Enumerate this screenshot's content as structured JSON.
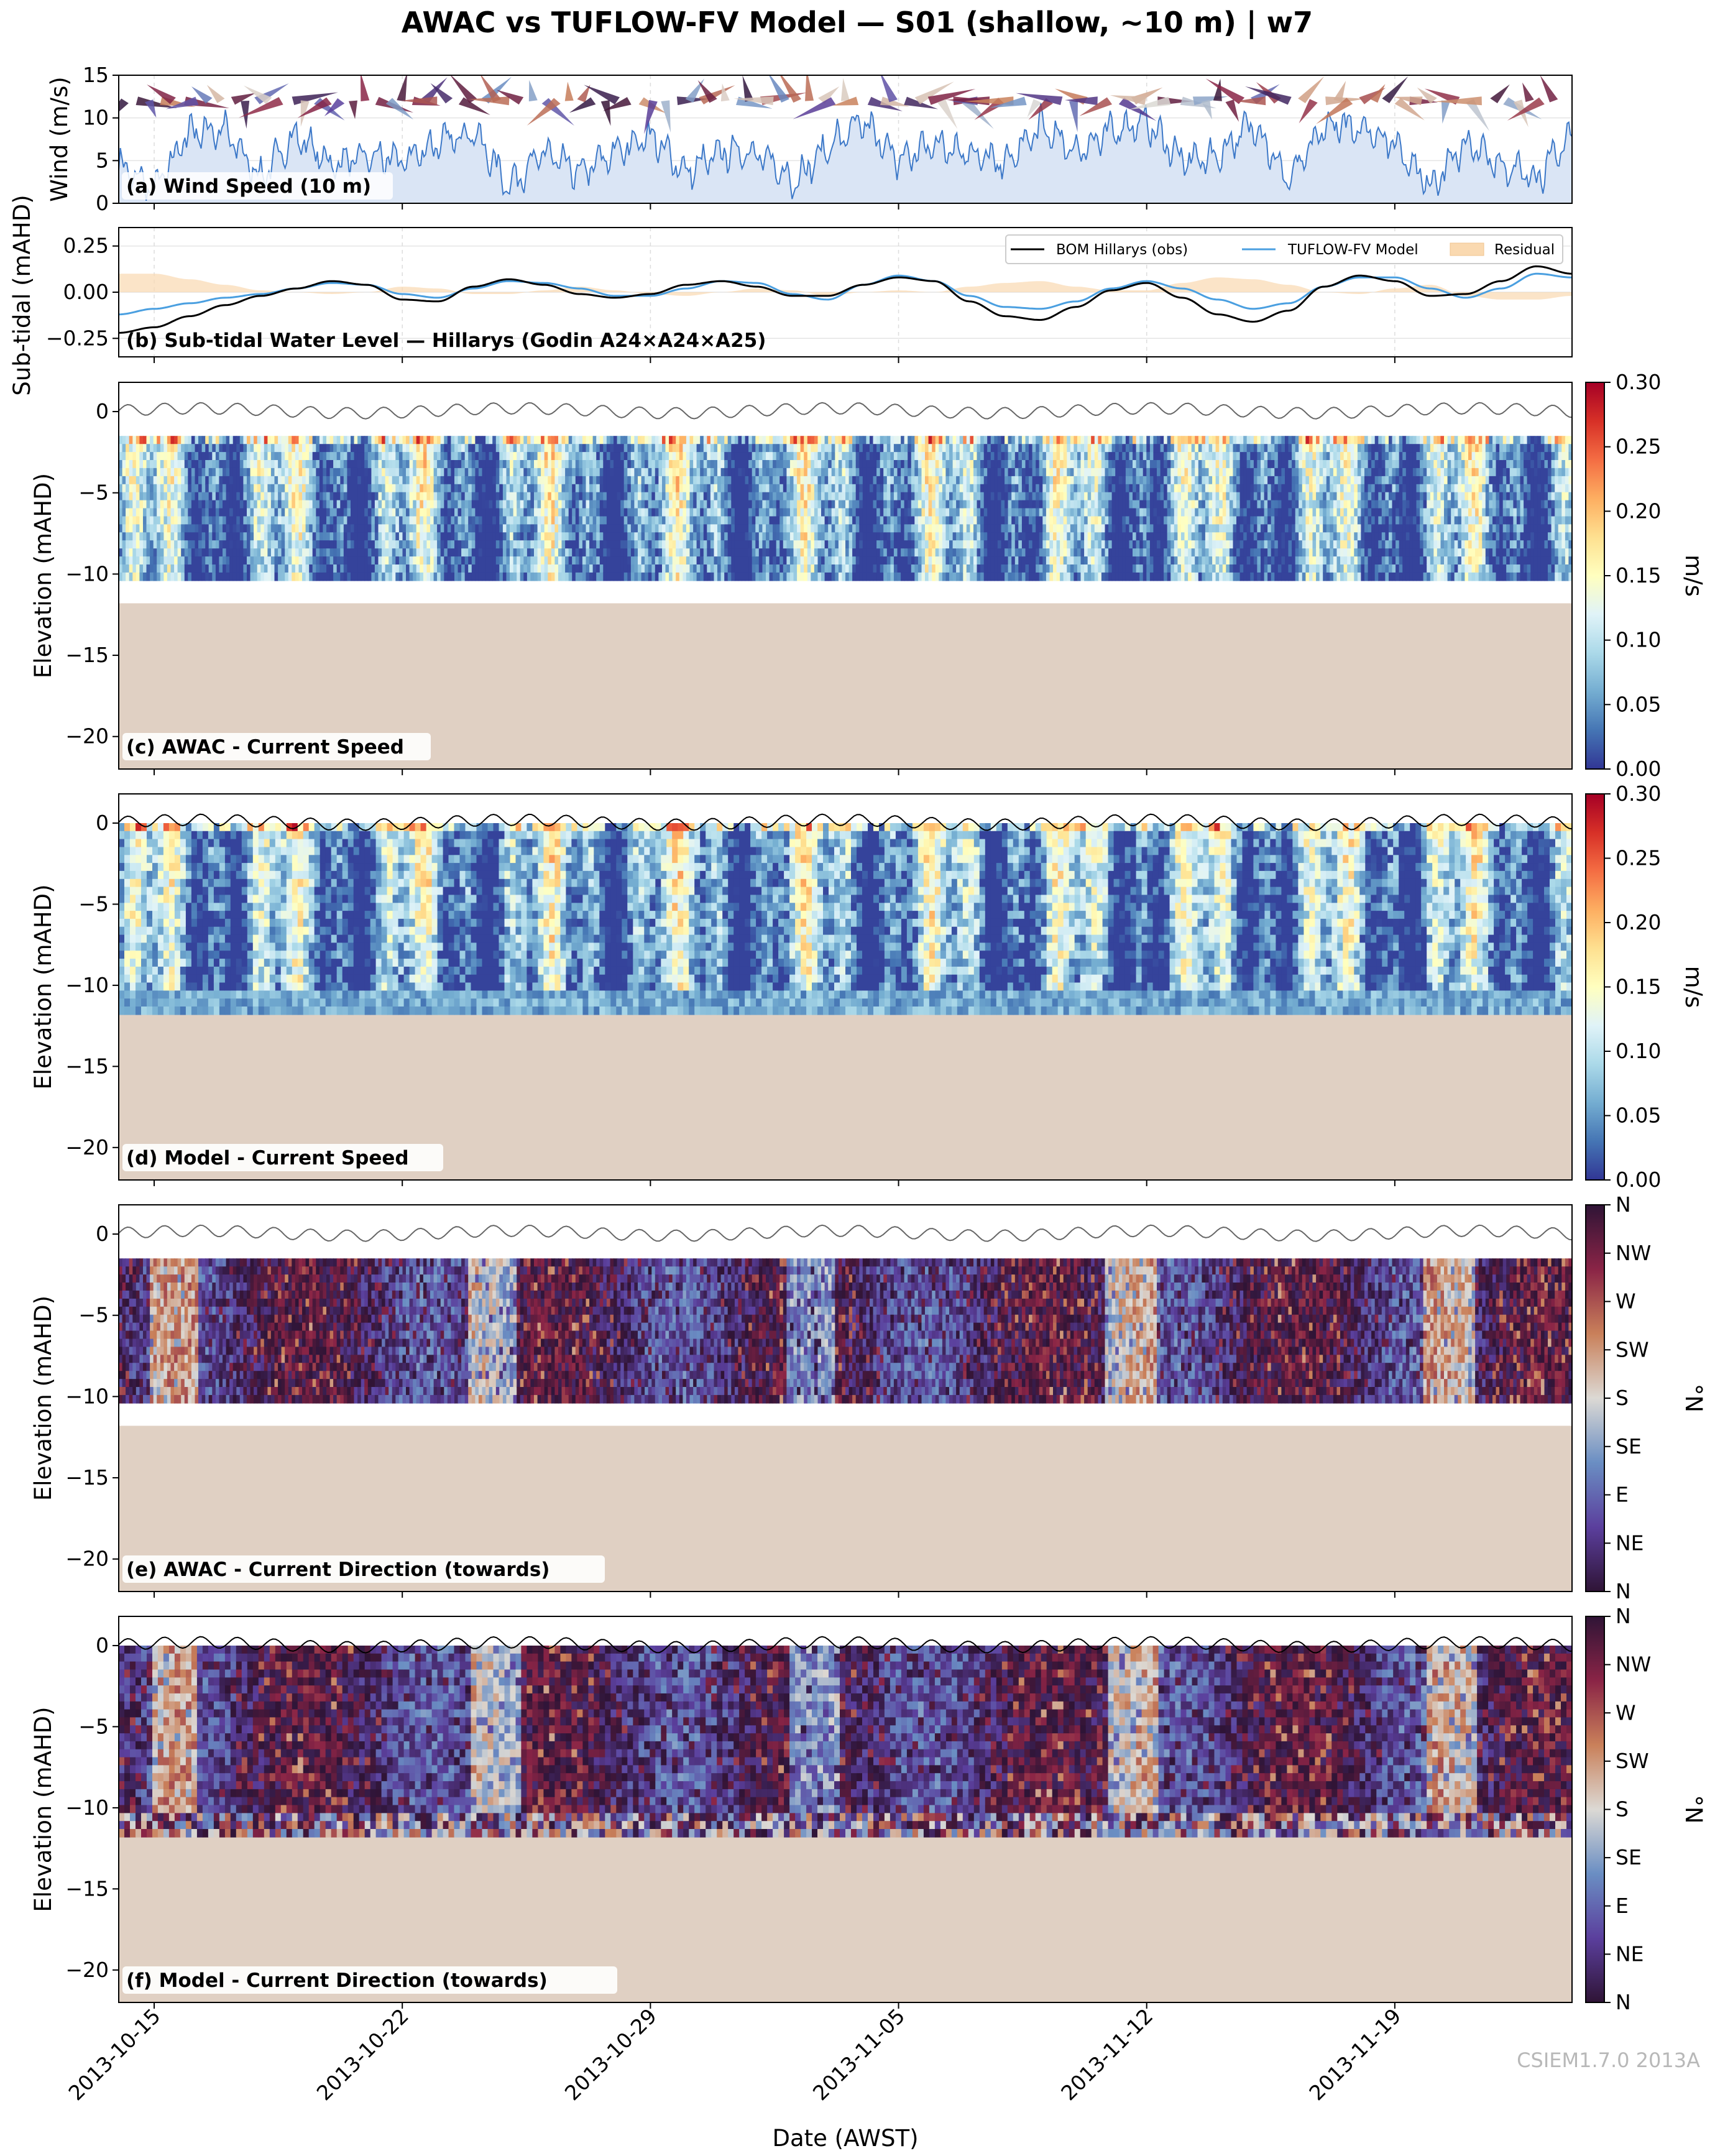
{
  "title": "AWAC vs TUFLOW-FV Model — S01 (shallow, ~10 m) | w7",
  "watermark": "CSIEM1.7.0 2013A",
  "colors": {
    "bed": "#e0d0c3",
    "wind_fill": "#dae5f5",
    "wind_line": "#3c78c8",
    "obs_line": "#000000",
    "model_line": "#4a9fe0",
    "residual_fill": "#fad9b0"
  },
  "chart_data": [
    {
      "id": "a",
      "type": "area",
      "label": "(a) Wind Speed (10 m)",
      "ylabel": "Wind (m/s)",
      "ylim": [
        0,
        15
      ],
      "yticks": [
        0,
        5,
        10,
        15
      ],
      "x_range": [
        "2013-10-14",
        "2013-11-24"
      ],
      "series": [
        {
          "x": [
            "2013-10-14",
            "2013-10-15",
            "2013-10-16",
            "2013-10-17",
            "2013-10-18",
            "2013-10-19",
            "2013-10-20",
            "2013-10-21",
            "2013-10-22",
            "2013-10-23",
            "2013-10-24",
            "2013-10-25",
            "2013-10-26",
            "2013-10-27",
            "2013-10-28",
            "2013-10-29",
            "2013-10-30",
            "2013-10-31",
            "2013-11-01",
            "2013-11-02",
            "2013-11-03",
            "2013-11-04",
            "2013-11-05",
            "2013-11-06",
            "2013-11-07",
            "2013-11-08",
            "2013-11-09",
            "2013-11-10",
            "2013-11-11",
            "2013-11-12",
            "2013-11-13",
            "2013-11-14",
            "2013-11-15",
            "2013-11-16",
            "2013-11-17",
            "2013-11-18",
            "2013-11-19",
            "2013-11-20",
            "2013-11-21",
            "2013-11-22",
            "2013-11-23",
            "2013-11-24"
          ],
          "values": [
            4.5,
            1.5,
            8.5,
            8.5,
            3.0,
            8.0,
            4.5,
            5.5,
            5.0,
            7.0,
            8.5,
            2.0,
            6.0,
            3.5,
            6.0,
            8.0,
            3.5,
            6.0,
            6.0,
            2.5,
            6.5,
            9.5,
            5.0,
            7.0,
            6.0,
            4.5,
            9.0,
            6.0,
            8.5,
            9.5,
            5.0,
            5.5,
            9.5,
            2.5,
            9.0,
            9.0,
            7.0,
            2.0,
            7.0,
            4.5,
            3.0,
            8.0
          ]
        }
      ]
    },
    {
      "id": "b",
      "type": "line",
      "label": "(b) Sub-tidal Water Level — Hillarys (Godin A24×A24×A25)",
      "ylabel": "Sub-tidal (mAHD)",
      "ylim": [
        -0.35,
        0.35
      ],
      "yticks": [
        -0.25,
        0.0,
        0.25
      ],
      "ytick_labels": [
        "−0.25",
        "0.00",
        "0.25"
      ],
      "x_range": [
        "2013-10-14",
        "2013-11-24"
      ],
      "legend": [
        "BOM Hillarys (obs)",
        "TUFLOW-FV Model",
        "Residual"
      ],
      "x": [
        "2013-10-14",
        "2013-10-15",
        "2013-10-16",
        "2013-10-17",
        "2013-10-18",
        "2013-10-19",
        "2013-10-20",
        "2013-10-21",
        "2013-10-22",
        "2013-10-23",
        "2013-10-24",
        "2013-10-25",
        "2013-10-26",
        "2013-10-27",
        "2013-10-28",
        "2013-10-29",
        "2013-10-30",
        "2013-10-31",
        "2013-11-01",
        "2013-11-02",
        "2013-11-03",
        "2013-11-04",
        "2013-11-05",
        "2013-11-06",
        "2013-11-07",
        "2013-11-08",
        "2013-11-09",
        "2013-11-10",
        "2013-11-11",
        "2013-11-12",
        "2013-11-13",
        "2013-11-14",
        "2013-11-15",
        "2013-11-16",
        "2013-11-17",
        "2013-11-18",
        "2013-11-19",
        "2013-11-20",
        "2013-11-21",
        "2013-11-22",
        "2013-11-23",
        "2013-11-24"
      ],
      "series": [
        {
          "name": "BOM Hillarys (obs)",
          "values": [
            -0.22,
            -0.19,
            -0.13,
            -0.07,
            -0.02,
            0.02,
            0.06,
            0.04,
            -0.04,
            -0.05,
            0.03,
            0.07,
            0.04,
            -0.01,
            -0.03,
            -0.01,
            0.04,
            0.06,
            0.03,
            -0.02,
            -0.02,
            0.04,
            0.08,
            0.06,
            -0.05,
            -0.13,
            -0.15,
            -0.08,
            0.01,
            0.05,
            -0.03,
            -0.12,
            -0.16,
            -0.1,
            0.03,
            0.09,
            0.06,
            -0.02,
            -0.01,
            0.06,
            0.14,
            0.1
          ]
        },
        {
          "name": "TUFLOW-FV Model",
          "values": [
            -0.12,
            -0.09,
            -0.06,
            -0.03,
            -0.01,
            0.02,
            0.05,
            0.04,
            -0.01,
            -0.03,
            0.02,
            0.06,
            0.05,
            0.02,
            -0.02,
            -0.02,
            0.02,
            0.06,
            0.05,
            -0.01,
            -0.04,
            0.04,
            0.09,
            0.06,
            -0.02,
            -0.08,
            -0.09,
            -0.05,
            0.02,
            0.06,
            0.02,
            -0.04,
            -0.09,
            -0.06,
            0.03,
            0.08,
            0.08,
            0.02,
            -0.03,
            0.02,
            0.1,
            0.08
          ]
        }
      ]
    },
    {
      "id": "c",
      "type": "heatmap",
      "label": "(c) AWAC - Current Speed",
      "ylabel": "Elevation (mAHD)",
      "ylim": [
        -22,
        1.8
      ],
      "yticks": [
        -20,
        -15,
        -10,
        -5,
        0
      ],
      "cbar_label": "m/s",
      "cbar_ticks": [
        "0.00",
        "0.05",
        "0.10",
        "0.15",
        "0.20",
        "0.25",
        "0.30"
      ],
      "clim": [
        0,
        0.3
      ],
      "bins_top": -1.5,
      "bins_bottom": -10.4,
      "bed_elevation": -11.8
    },
    {
      "id": "d",
      "type": "heatmap",
      "label": "(d) Model - Current Speed",
      "ylabel": "Elevation (mAHD)",
      "ylim": [
        -22,
        1.8
      ],
      "yticks": [
        -20,
        -15,
        -10,
        -5,
        0
      ],
      "cbar_label": "m/s",
      "cbar_ticks": [
        "0.00",
        "0.05",
        "0.10",
        "0.15",
        "0.20",
        "0.25",
        "0.30"
      ],
      "clim": [
        0,
        0.3
      ],
      "bins_top": 0,
      "bins_bottom": -11.8,
      "bed_elevation": -11.8
    },
    {
      "id": "e",
      "type": "heatmap",
      "label": "(e) AWAC - Current Direction (towards)",
      "ylabel": "Elevation (mAHD)",
      "ylim": [
        -22,
        1.8
      ],
      "yticks": [
        -20,
        -15,
        -10,
        -5,
        0
      ],
      "cbar_label": "°N",
      "cbar_ticks": [
        "N",
        "NE",
        "E",
        "SE",
        "S",
        "SW",
        "W",
        "NW",
        "N"
      ],
      "bins_top": -1.5,
      "bins_bottom": -10.4,
      "bed_elevation": -11.8
    },
    {
      "id": "f",
      "type": "heatmap",
      "label": "(f) Model - Current Direction (towards)",
      "ylabel": "Elevation (mAHD)",
      "ylim": [
        -22,
        1.8
      ],
      "yticks": [
        -20,
        -15,
        -10,
        -5,
        0
      ],
      "cbar_label": "°N",
      "cbar_ticks": [
        "N",
        "NE",
        "E",
        "SE",
        "S",
        "SW",
        "W",
        "NW",
        "N"
      ],
      "bins_top": 0,
      "bins_bottom": -11.8,
      "bed_elevation": -11.8
    }
  ],
  "xaxis": {
    "label": "Date (AWST)",
    "ticks": [
      "2013-10-15",
      "2013-10-22",
      "2013-10-29",
      "2013-11-05",
      "2013-11-12",
      "2013-11-19"
    ]
  },
  "speed_colormap": [
    "#313695",
    "#4575b4",
    "#74add1",
    "#abd9e9",
    "#e0f3f8",
    "#ffffbf",
    "#fee090",
    "#fdae61",
    "#f46d43",
    "#d73027",
    "#a50026"
  ],
  "direction_colormap": [
    "#2f1436",
    "#5b3f9d",
    "#6a8ec3",
    "#dcd9d4",
    "#c9805a",
    "#8a2446",
    "#2f1436"
  ]
}
